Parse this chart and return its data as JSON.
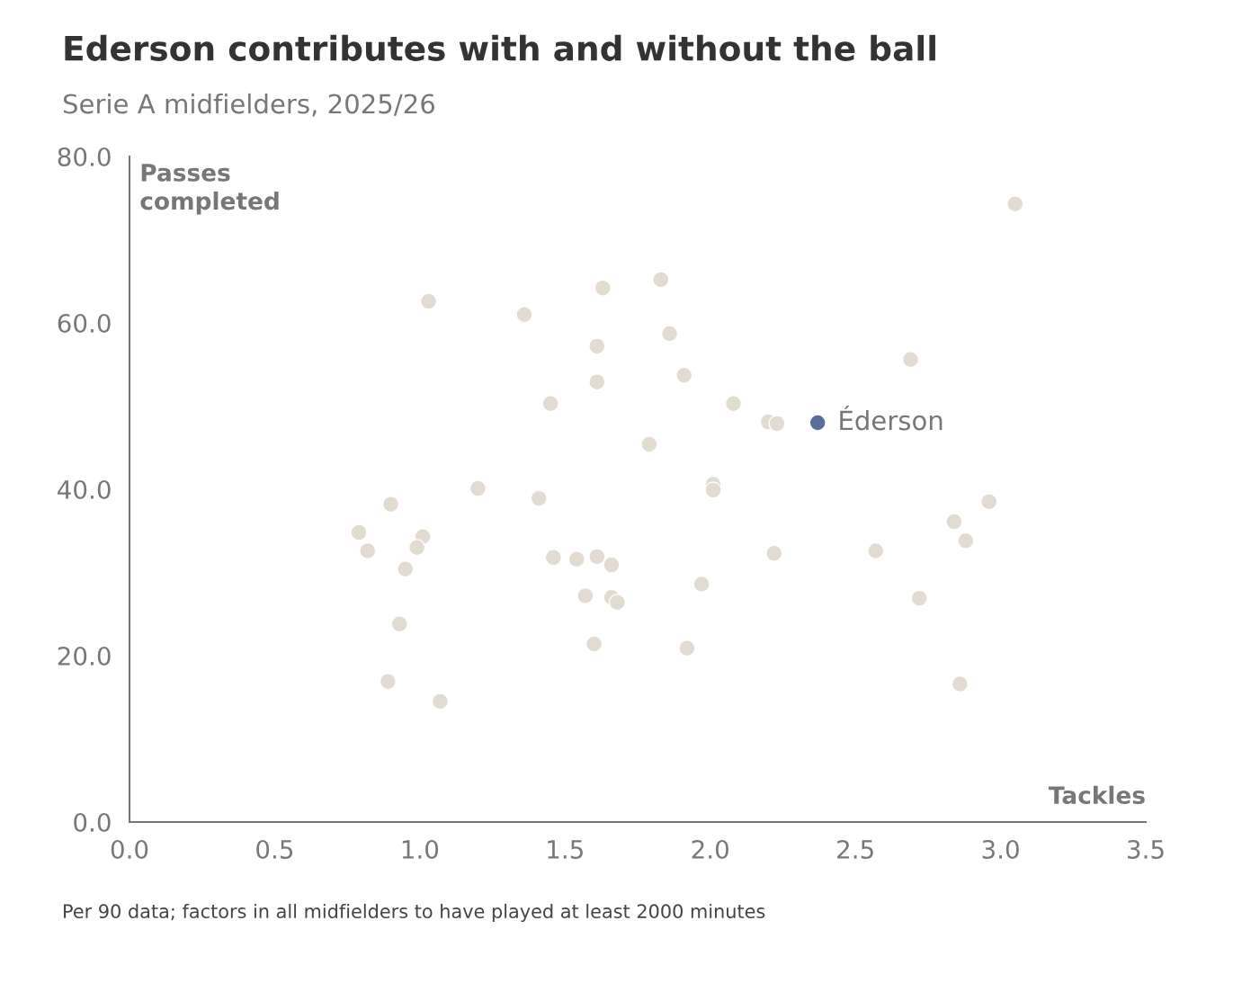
{
  "chart_data": {
    "type": "scatter",
    "title": "Ederson contributes with and without the ball",
    "subtitle": "Serie A midfielders, 2025/26",
    "xlabel": "Tackles",
    "ylabel": "Passes completed",
    "xlim": [
      0,
      3.5
    ],
    "ylim": [
      0,
      80
    ],
    "xticks": [
      {
        "value": 0,
        "label": "0.0"
      },
      {
        "value": 0.5,
        "label": "0.5"
      },
      {
        "value": 1,
        "label": "1.0"
      },
      {
        "value": 1.5,
        "label": "1.5"
      },
      {
        "value": 2,
        "label": "2.0"
      },
      {
        "value": 2.5,
        "label": "2.5"
      },
      {
        "value": 3,
        "label": "3.0"
      },
      {
        "value": 3.5,
        "label": "3.5"
      }
    ],
    "yticks": [
      {
        "value": 0,
        "label": "0.0"
      },
      {
        "value": 20,
        "label": "20.0"
      },
      {
        "value": 40,
        "label": "40.0"
      },
      {
        "value": 60,
        "label": "60.0"
      },
      {
        "value": 80,
        "label": "80.0"
      }
    ],
    "grid": false,
    "legend": false,
    "marker": "circle",
    "annotations": [
      "Per 90 data; factors in all midfielders to have played at least 2000 minutes"
    ],
    "series": [
      {
        "color": "#e1dbd2",
        "x": [
          3.05,
          1.03,
          1.36,
          1.63,
          1.83,
          1.61,
          1.86,
          1.61,
          1.91,
          1.45,
          2.08,
          2.2,
          2.23,
          2.69,
          1.79,
          1.2,
          1.41,
          2.01,
          2.01,
          0.9,
          0.79,
          0.82,
          1.01,
          0.99,
          0.95,
          1.46,
          1.54,
          1.61,
          1.66,
          1.57,
          1.66,
          1.68,
          1.97,
          2.22,
          2.57,
          2.84,
          2.96,
          2.88,
          2.72,
          0.93,
          1.6,
          1.92,
          0.89,
          1.07,
          2.86
        ],
        "values": [
          74.3,
          62.6,
          61.0,
          64.2,
          65.2,
          57.2,
          58.7,
          52.9,
          53.7,
          50.3,
          50.3,
          48.1,
          47.9,
          55.6,
          45.4,
          40.1,
          38.9,
          40.6,
          39.9,
          38.2,
          34.8,
          32.6,
          34.3,
          33.0,
          30.4,
          31.8,
          31.6,
          31.9,
          30.9,
          27.2,
          27.0,
          26.4,
          28.6,
          32.3,
          32.6,
          36.1,
          38.5,
          33.8,
          26.9,
          23.8,
          21.4,
          20.9,
          16.9,
          14.5,
          16.6
        ]
      },
      {
        "name": "Éderson",
        "color": "#5a6e9c",
        "x": [
          2.37
        ],
        "values": [
          48.0
        ]
      }
    ]
  }
}
